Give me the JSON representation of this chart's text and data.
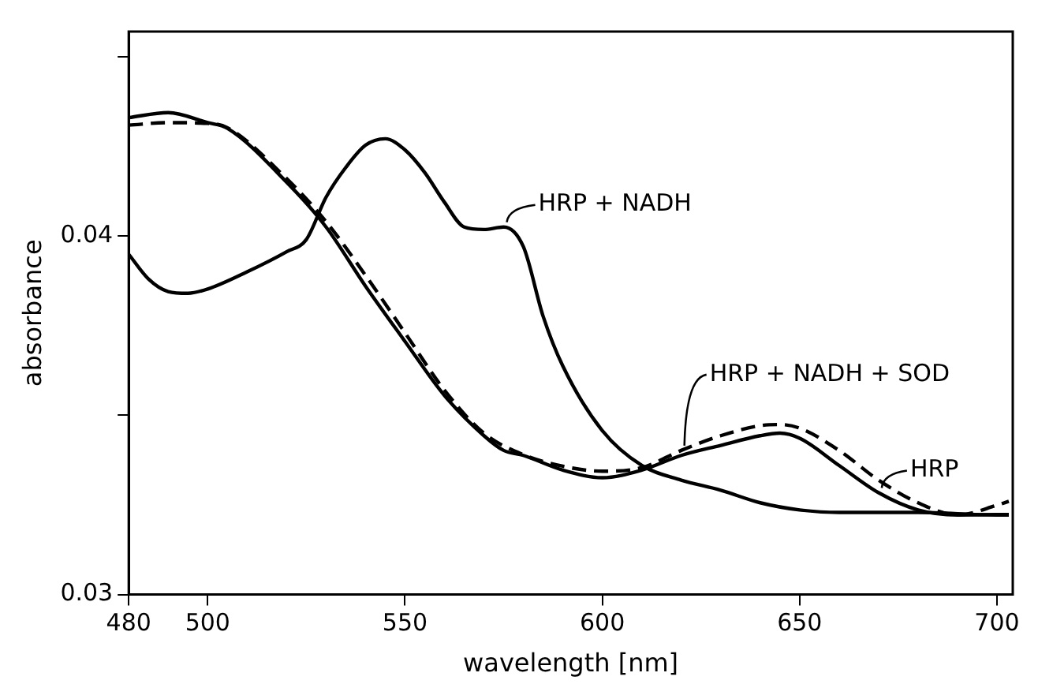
{
  "chart_data": {
    "type": "line",
    "xlabel": "wavelength [nm]",
    "ylabel": "absorbance",
    "xlim": [
      480,
      704
    ],
    "xticks": [
      480,
      500,
      550,
      600,
      650,
      700
    ],
    "ylim": [
      0.03,
      0.0457
    ],
    "yticks": [
      0.03,
      {
        "value": 0.035,
        "label": null
      },
      0.04,
      {
        "value": 0.045,
        "label": null
      }
    ],
    "grid": false,
    "legend": "right",
    "marker": "none",
    "series": [
      {
        "name": "HRP + NADH",
        "color": "#000000",
        "line_style": "solid",
        "x": [
          480,
          485,
          490,
          495,
          500,
          510,
          520,
          525,
          530,
          535,
          540,
          545,
          550,
          555,
          560,
          565,
          570,
          575,
          580,
          585,
          590,
          600,
          610,
          620,
          630,
          640,
          650,
          660,
          680,
          700,
          703
        ],
        "values": [
          0.03949,
          0.0388,
          0.03845,
          0.0384,
          0.03852,
          0.039,
          0.03956,
          0.0399,
          0.04108,
          0.04191,
          0.04253,
          0.04271,
          0.0424,
          0.04177,
          0.04094,
          0.04025,
          0.04018,
          0.04025,
          0.0397,
          0.03776,
          0.03637,
          0.03457,
          0.0336,
          0.03319,
          0.03291,
          0.03256,
          0.03236,
          0.03229,
          0.03229,
          0.03222,
          0.03222
        ]
      },
      {
        "name": "HRP + NADH + SOD",
        "color": "#000000",
        "line_style": "dashed",
        "x": [
          480,
          490,
          500,
          505,
          520,
          530,
          540,
          550,
          560,
          570,
          580,
          590,
          600,
          610,
          620,
          630,
          640,
          645,
          650,
          660,
          670,
          680,
          690,
          700,
          703
        ],
        "values": [
          0.04309,
          0.04316,
          0.04314,
          0.04302,
          0.0416,
          0.0404,
          0.0389,
          0.0373,
          0.0357,
          0.0345,
          0.0339,
          0.03358,
          0.03344,
          0.03354,
          0.03402,
          0.03443,
          0.03471,
          0.03474,
          0.03464,
          0.03402,
          0.03319,
          0.03256,
          0.03222,
          0.03249,
          0.0326
        ]
      },
      {
        "name": "HRP",
        "color": "#000000",
        "line_style": "solid",
        "x": [
          480,
          490,
          500,
          505,
          520,
          530,
          540,
          550,
          560,
          570,
          575,
          580,
          590,
          600,
          610,
          620,
          630,
          640,
          645,
          650,
          660,
          670,
          680,
          690,
          700,
          703
        ],
        "values": [
          0.0433,
          0.04344,
          0.04316,
          0.043,
          0.0415,
          0.04025,
          0.0386,
          0.03706,
          0.03555,
          0.03443,
          0.03402,
          0.03388,
          0.03347,
          0.03326,
          0.03347,
          0.03388,
          0.03416,
          0.03443,
          0.0345,
          0.03436,
          0.0336,
          0.03284,
          0.03236,
          0.03222,
          0.03223,
          0.03223
        ]
      }
    ]
  }
}
